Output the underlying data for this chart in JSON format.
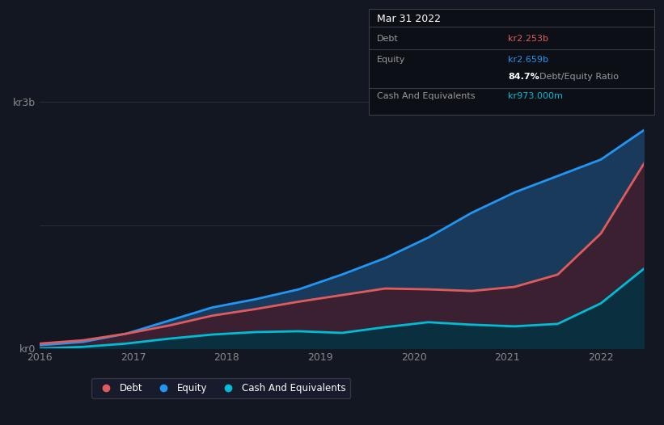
{
  "bg_color": "#131722",
  "plot_bg_color": "#131722",
  "title_box": {
    "date": "Mar 31 2022",
    "debt_label": "Debt",
    "debt_value": "kr2.253b",
    "equity_label": "Equity",
    "equity_value": "kr2.659b",
    "ratio_value": "84.7%",
    "ratio_label": "Debt/Equity Ratio",
    "cash_label": "Cash And Equivalents",
    "cash_value": "kr973.000m"
  },
  "ylabel_top": "kr3b",
  "ylabel_bottom": "kr0",
  "x_ticks": [
    "2016",
    "2017",
    "2018",
    "2019",
    "2020",
    "2021",
    "2022"
  ],
  "equity_color": "#2196f3",
  "debt_color": "#e05c5c",
  "cash_color": "#00bcd4",
  "equity_fill_color": "#1a3a5c",
  "debt_fill_color": "#3a2030",
  "cash_fill_color": "#0a3040",
  "legend_bg": "#1a1d2e",
  "legend_edge": "#3a3d4a",
  "grid_color": "#2a2e3a",
  "tick_color": "#888888",
  "box_bg": "#0d0f17",
  "box_edge": "#3a3d4a",
  "equity_data": [
    0.04,
    0.08,
    0.18,
    0.34,
    0.5,
    0.6,
    0.72,
    0.9,
    1.1,
    1.35,
    1.65,
    1.9,
    2.1,
    2.3,
    2.659
  ],
  "debt_data": [
    0.06,
    0.1,
    0.18,
    0.28,
    0.4,
    0.48,
    0.57,
    0.65,
    0.73,
    0.72,
    0.7,
    0.75,
    0.9,
    1.4,
    2.253
  ],
  "cash_data": [
    0.0,
    0.02,
    0.06,
    0.12,
    0.17,
    0.2,
    0.21,
    0.19,
    0.26,
    0.32,
    0.29,
    0.27,
    0.3,
    0.55,
    0.973
  ],
  "x_data": [
    0,
    1,
    2,
    3,
    4,
    5,
    6,
    7,
    8,
    9,
    10,
    11,
    12,
    13,
    14
  ],
  "x_tick_positions": [
    0,
    2.167,
    4.333,
    6.5,
    8.667,
    10.833,
    13.0
  ],
  "ylim": [
    0,
    3.0
  ],
  "xlim": [
    0,
    14
  ]
}
